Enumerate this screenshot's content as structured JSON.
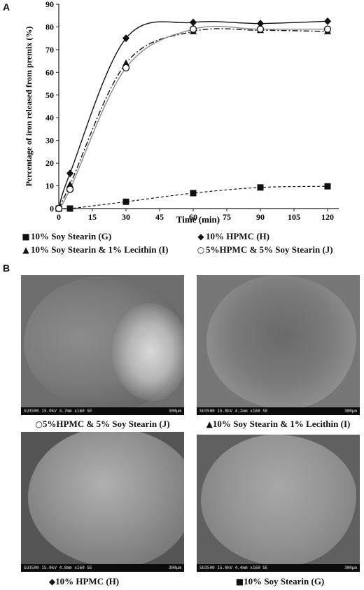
{
  "panels": {
    "a": "A",
    "b": "B"
  },
  "chart_data": {
    "type": "line",
    "xlabel": "Time (min)",
    "ylabel": "Percentage of iron released from premix (%)",
    "xlim": [
      0,
      125
    ],
    "ylim": [
      0,
      90
    ],
    "xticks": [
      0,
      15,
      30,
      45,
      60,
      75,
      90,
      105,
      120
    ],
    "yticks": [
      0,
      10,
      20,
      30,
      40,
      50,
      60,
      70,
      80,
      90
    ],
    "grid": false,
    "series": [
      {
        "name": "10% Soy Stearin (G)",
        "marker": "square",
        "line": "dashed",
        "x": [
          0,
          5,
          30,
          60,
          90,
          120
        ],
        "y": [
          0,
          0,
          3,
          6.8,
          9.3,
          9.8
        ]
      },
      {
        "name": "10% HPMC (H)",
        "marker": "diamond",
        "line": "solid",
        "x": [
          0,
          5,
          30,
          60,
          90,
          120
        ],
        "y": [
          0,
          15.5,
          75,
          82,
          81.5,
          82.5
        ]
      },
      {
        "name": "10% Soy Stearin & 1% Lecithin (I)",
        "marker": "triangle",
        "line": "dash-dot",
        "x": [
          0,
          5,
          30,
          60,
          90,
          120
        ],
        "y": [
          0,
          10.5,
          64,
          78,
          78.5,
          78
        ]
      },
      {
        "name": "5%HPMC & 5% Soy Stearin (J)",
        "marker": "circle",
        "line": "solid-grey",
        "x": [
          0,
          5,
          30,
          60,
          90,
          120
        ],
        "y": [
          0,
          8.5,
          62,
          79,
          79,
          79
        ]
      }
    ]
  },
  "legend": [
    {
      "icon": "■",
      "label": "10% Soy Stearin (G)"
    },
    {
      "icon": "◆",
      "label": "10% HPMC (H)"
    },
    {
      "icon": "▲",
      "label": "10% Soy Stearin & 1% Lecithin (I)"
    },
    {
      "icon": "○",
      "label": "5%HPMC & 5% Soy Stearin (J)"
    }
  ],
  "sem_images": [
    {
      "bar_text": "SU3500 15.0kV 4.7mm x160 SE",
      "scale": "300μm",
      "caption_icon": "○",
      "caption": "5%HPMC & 5% Soy Stearin (J)"
    },
    {
      "bar_text": "SU3500 15.0kV 4.2mm x160 SE",
      "scale": "300μm",
      "caption_icon": "▲",
      "caption": "10% Soy Stearin & 1% Lecithin (I)"
    },
    {
      "bar_text": "SU3500 15.0kV 4.8mm x160 SE",
      "scale": "300μm",
      "caption_icon": "◆",
      "caption": "10% HPMC (H)"
    },
    {
      "bar_text": "SU3500 15.0kV 4.4mm x160 SE",
      "scale": "300μm",
      "caption_icon": "■",
      "caption": "10% Soy Stearin (G)"
    }
  ]
}
